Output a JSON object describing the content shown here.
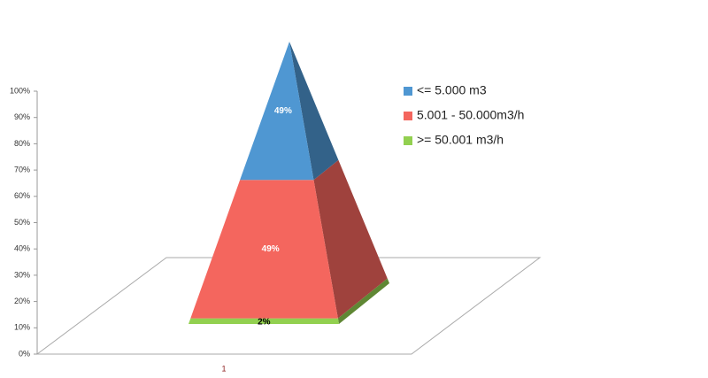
{
  "chart_data": {
    "type": "pyramid",
    "categories": [
      "1"
    ],
    "series": [
      {
        "name": ">= 50.001 m3/h",
        "color": "#92d050",
        "values": [
          2
        ],
        "value_labels": [
          "2%"
        ]
      },
      {
        "name": "5.001 - 50.000m3/h",
        "color": "#f4665e",
        "values": [
          49
        ],
        "value_labels": [
          "49%"
        ]
      },
      {
        "name": "<= 5.000 m3",
        "color": "#4f97d2",
        "values": [
          49
        ],
        "value_labels": [
          "49%"
        ]
      }
    ],
    "ylim": [
      0,
      100
    ],
    "yticks": [
      {
        "value": 0,
        "label": "0%"
      },
      {
        "value": 10,
        "label": "10%"
      },
      {
        "value": 20,
        "label": "20%"
      },
      {
        "value": 30,
        "label": "30%"
      },
      {
        "value": 40,
        "label": "40%"
      },
      {
        "value": 50,
        "label": "50%"
      },
      {
        "value": 60,
        "label": "60%"
      },
      {
        "value": 70,
        "label": "70%"
      },
      {
        "value": 80,
        "label": "80%"
      },
      {
        "value": 90,
        "label": "90%"
      },
      {
        "value": 100,
        "label": "100%"
      }
    ]
  }
}
